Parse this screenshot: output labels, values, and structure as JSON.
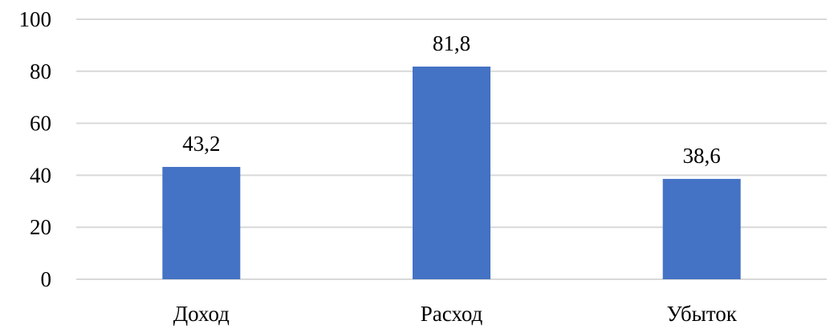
{
  "chart_data": {
    "type": "bar",
    "categories": [
      "Доход",
      "Расход",
      "Убыток"
    ],
    "values": [
      43.2,
      81.8,
      38.6
    ],
    "data_labels": [
      "43,2",
      "81,8",
      "38,6"
    ],
    "title": "",
    "xlabel": "",
    "ylabel": "",
    "ylim": [
      0,
      100
    ],
    "yticks": [
      0,
      20,
      40,
      60,
      80,
      100
    ],
    "grid": true,
    "legend": "none",
    "bar_color": "#4472c4",
    "grid_color": "#d9d9d9"
  }
}
